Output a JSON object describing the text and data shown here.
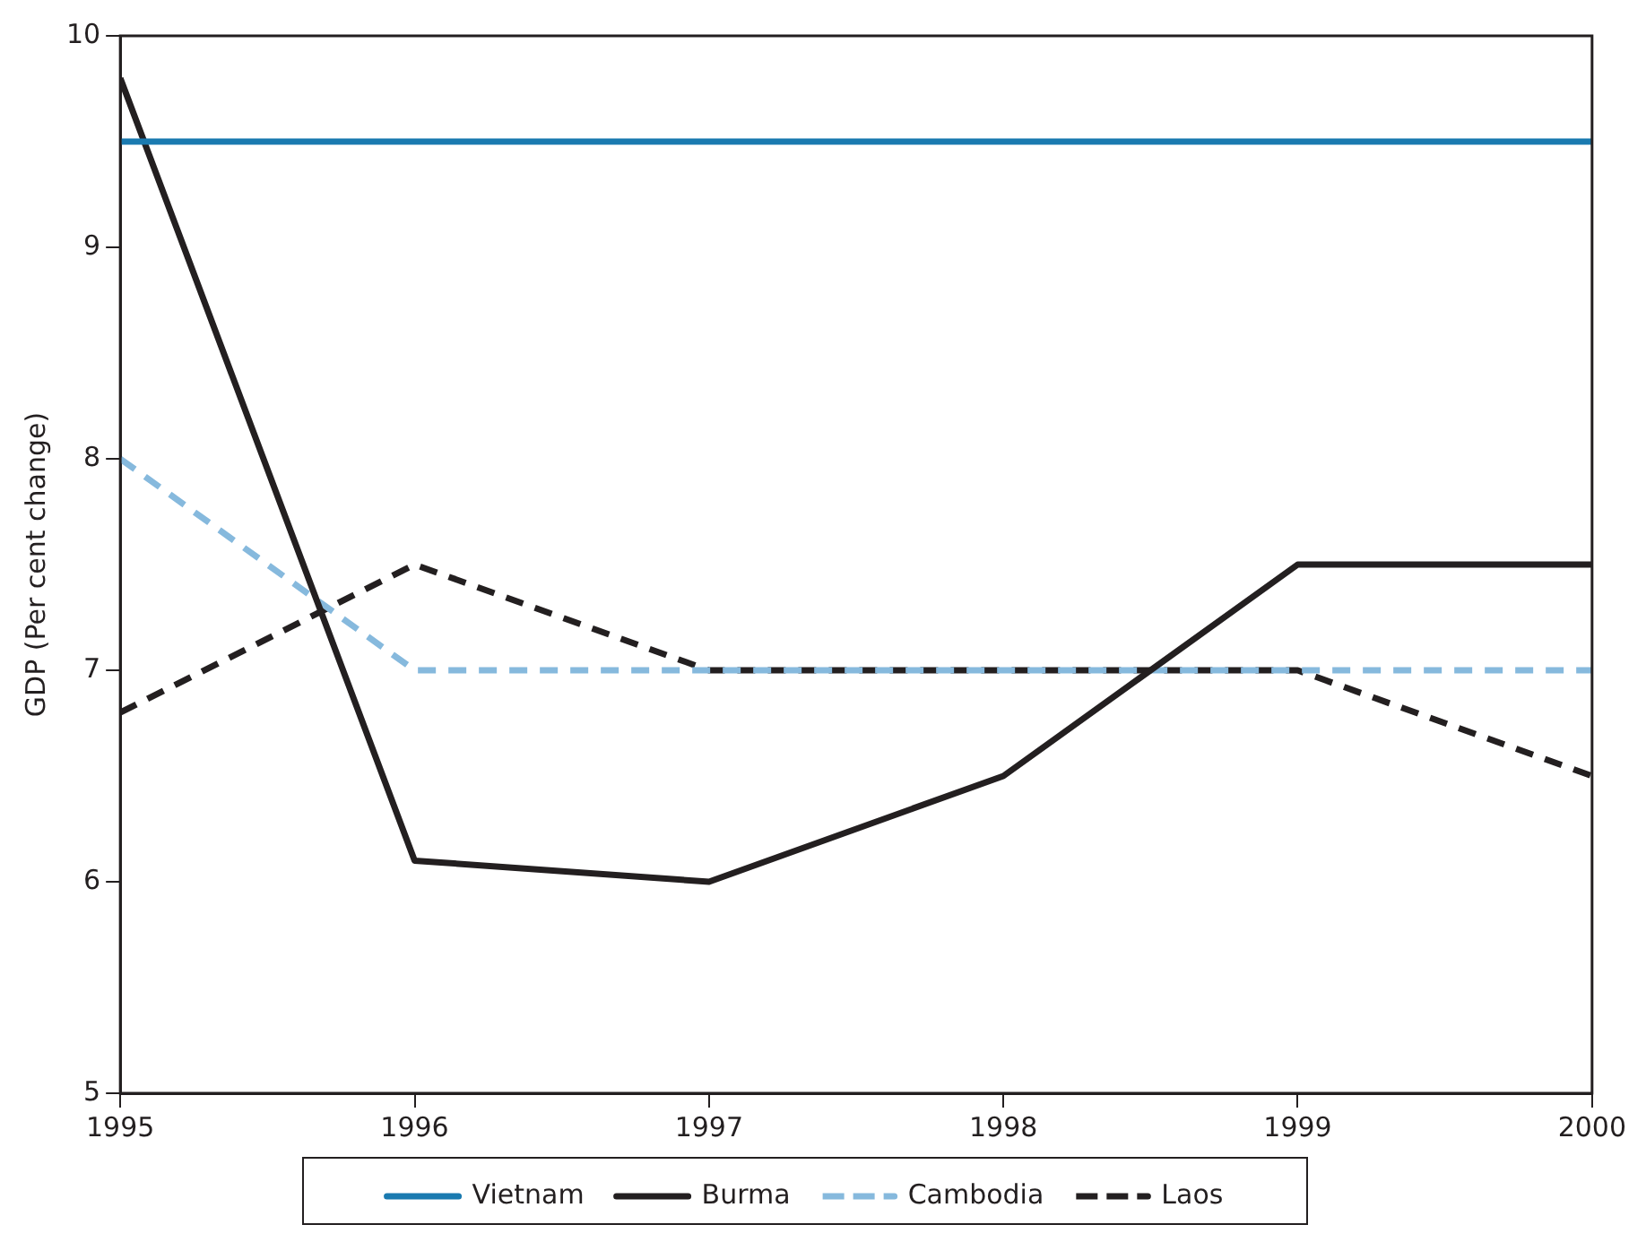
{
  "chart_data": {
    "type": "line",
    "ylabel": "GDP (Per cent change)",
    "x": [
      1995,
      1996,
      1997,
      1998,
      1999,
      2000
    ],
    "xlim": [
      1995,
      2000
    ],
    "xticks": [
      1995,
      1996,
      1997,
      1998,
      1999,
      2000
    ],
    "ylim": [
      5,
      10
    ],
    "yticks": [
      5,
      6,
      7,
      8,
      9,
      10
    ],
    "grid": false,
    "legend": "bottom",
    "marker": "none",
    "series": [
      {
        "name": "Vietnam",
        "color": "#1a7ab0",
        "line_style": "solid",
        "values": [
          9.5,
          9.5,
          9.5,
          9.5,
          9.5,
          9.5
        ]
      },
      {
        "name": "Burma",
        "color": "#231f20",
        "line_style": "solid",
        "values": [
          9.8,
          6.1,
          6.0,
          6.5,
          7.5,
          7.5
        ]
      },
      {
        "name": "Cambodia",
        "color": "#86b9dd",
        "line_style": "dashed",
        "values": [
          8.0,
          7.0,
          7.0,
          7.0,
          7.0,
          7.0
        ]
      },
      {
        "name": "Laos",
        "color": "#231f20",
        "line_style": "dashed",
        "values": [
          6.8,
          7.5,
          7.0,
          7.0,
          7.0,
          6.5
        ]
      }
    ]
  }
}
